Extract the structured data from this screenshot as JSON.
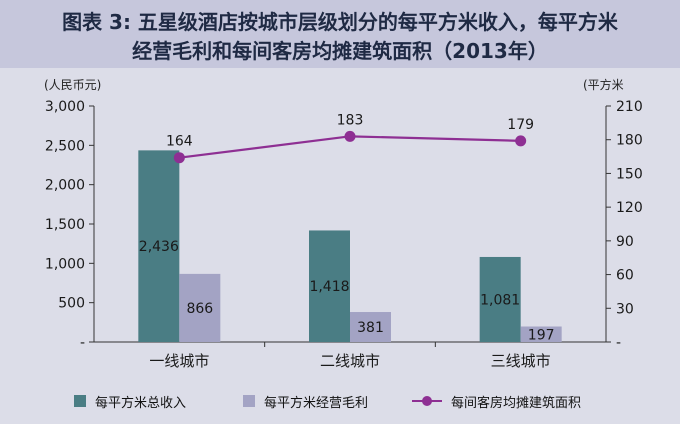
{
  "title": {
    "line1": "图表 3: 五星级酒店按城市层级划分的每平方米收入，每平方米",
    "line2": "经营毛利和每间客房均摊建筑面积（2013年）"
  },
  "colors": {
    "title_bg": "#c6c7dc",
    "plot_bg": "#dcdde8",
    "title_text": "#1f2a44",
    "revenue_bar": "#4a7d84",
    "profit_bar": "#a3a3c4",
    "area_line": "#8e2f93"
  },
  "chart_data": {
    "type": "bar",
    "categories": [
      "一线城市",
      "二线城市",
      "三线城市"
    ],
    "y_left": {
      "unit_label": "(人民币元)",
      "ylim": [
        0,
        3000
      ],
      "ticks": [
        "3,000",
        "2,500",
        "2,000",
        "1,500",
        "1,000",
        "500",
        "-"
      ]
    },
    "y_right": {
      "unit_label": "(平方米",
      "ylim": [
        0,
        210
      ],
      "ticks": [
        "210",
        "180",
        "150",
        "120",
        "90",
        "60",
        "30",
        "-"
      ]
    },
    "series": [
      {
        "name": "每平方米总收入",
        "type": "bar",
        "axis": "left",
        "values": [
          2436,
          1418,
          1081
        ],
        "labels": [
          "2,436",
          "1,418",
          "1,081"
        ]
      },
      {
        "name": "每平方米经营毛利",
        "type": "bar",
        "axis": "left",
        "values": [
          866,
          381,
          197
        ],
        "labels": [
          "866",
          "381",
          "197"
        ]
      },
      {
        "name": "每间客房均摊建筑面积",
        "type": "line",
        "axis": "right",
        "values": [
          164,
          183,
          179
        ],
        "labels": [
          "164",
          "183",
          "179"
        ]
      }
    ],
    "grid": false,
    "legend_position": "bottom"
  },
  "legend": [
    {
      "label": "每平方米总收入",
      "icon": "teal-square"
    },
    {
      "label": "每平方米经营毛利",
      "icon": "lavender-square"
    },
    {
      "label": "每间客房均摊建筑面积",
      "icon": "purple-line-dot"
    }
  ]
}
